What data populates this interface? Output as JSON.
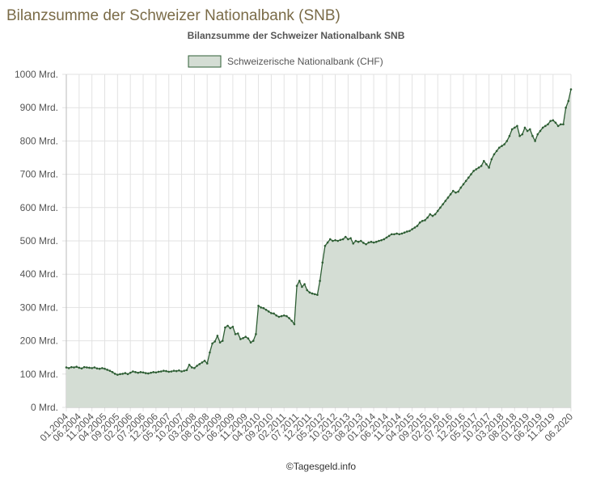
{
  "page_title": "Bilanzsumme der Schweizer Nationalbank (SNB)",
  "credit": "©Tagesgeld.info",
  "chart_data": {
    "type": "line",
    "title": "Bilanzsumme der Schweizer Nationalbank SNB",
    "categories": [
      "01.2004",
      null,
      null,
      null,
      null,
      "06.2004",
      null,
      null,
      null,
      null,
      "11.2004",
      null,
      null,
      null,
      null,
      "04.2005",
      null,
      null,
      null,
      null,
      "09.2005",
      null,
      null,
      null,
      null,
      "02.2006",
      null,
      null,
      null,
      null,
      "07.2006",
      null,
      null,
      null,
      null,
      "12.2006",
      null,
      null,
      null,
      null,
      "05.2007",
      null,
      null,
      null,
      null,
      "10.2007",
      null,
      null,
      null,
      null,
      "03.2008",
      null,
      null,
      null,
      null,
      "08.2008",
      null,
      null,
      null,
      null,
      "01.2009",
      null,
      null,
      null,
      null,
      "06.2009",
      null,
      null,
      null,
      null,
      "11.2009",
      null,
      null,
      null,
      null,
      "04.2010",
      null,
      null,
      null,
      null,
      "09.2010",
      null,
      null,
      null,
      null,
      "02.2011",
      null,
      null,
      null,
      null,
      "07.2011",
      null,
      null,
      null,
      null,
      "12.2011",
      null,
      null,
      null,
      null,
      "05.2012",
      null,
      null,
      null,
      null,
      "10.2012",
      null,
      null,
      null,
      null,
      "03.2013",
      null,
      null,
      null,
      null,
      "08.2013",
      null,
      null,
      null,
      null,
      "01.2014",
      null,
      null,
      null,
      null,
      "06.2014",
      null,
      null,
      null,
      null,
      "11.2014",
      null,
      null,
      null,
      null,
      "04.2015",
      null,
      null,
      null,
      null,
      "09.2015",
      null,
      null,
      null,
      null,
      "02.2016",
      null,
      null,
      null,
      null,
      "07.2016",
      null,
      null,
      null,
      null,
      "12.2016",
      null,
      null,
      null,
      null,
      "05.2017",
      null,
      null,
      null,
      null,
      "10.2017",
      null,
      null,
      null,
      null,
      "03.2018",
      null,
      null,
      null,
      null,
      "08.2018",
      null,
      null,
      null,
      null,
      "01.2019",
      null,
      null,
      null,
      null,
      "06.2019",
      null,
      null,
      null,
      null,
      "11.2019",
      null,
      null,
      null,
      null,
      null,
      null,
      "06.2020"
    ],
    "series": [
      {
        "name": "Schweizerische Nationalbank (CHF)",
        "color": "#2e5e34",
        "fill": "#d4ddd4",
        "values": [
          120,
          118,
          121,
          120,
          122,
          119,
          117,
          121,
          120,
          119,
          118,
          120,
          117,
          116,
          118,
          116,
          113,
          110,
          106,
          101,
          98,
          100,
          101,
          103,
          100,
          104,
          108,
          106,
          104,
          106,
          105,
          103,
          102,
          104,
          106,
          105,
          107,
          108,
          110,
          109,
          107,
          108,
          110,
          109,
          111,
          108,
          110,
          112,
          128,
          120,
          118,
          125,
          130,
          135,
          140,
          132,
          165,
          192,
          198,
          215,
          195,
          200,
          240,
          245,
          238,
          242,
          220,
          222,
          205,
          208,
          212,
          207,
          195,
          200,
          220,
          305,
          300,
          298,
          293,
          288,
          283,
          282,
          276,
          272,
          274,
          276,
          274,
          268,
          260,
          250,
          365,
          380,
          362,
          370,
          352,
          345,
          342,
          340,
          338,
          380,
          435,
          485,
          495,
          505,
          500,
          502,
          500,
          503,
          505,
          512,
          505,
          508,
          492,
          500,
          497,
          500,
          494,
          490,
          495,
          497,
          495,
          497,
          500,
          502,
          505,
          510,
          515,
          520,
          520,
          522,
          520,
          522,
          525,
          528,
          530,
          535,
          540,
          545,
          555,
          560,
          562,
          570,
          580,
          575,
          580,
          590,
          600,
          610,
          620,
          630,
          640,
          650,
          645,
          648,
          660,
          670,
          680,
          690,
          700,
          710,
          715,
          720,
          725,
          740,
          730,
          720,
          745,
          760,
          770,
          780,
          785,
          790,
          800,
          815,
          835,
          840,
          845,
          815,
          820,
          840,
          830,
          835,
          815,
          800,
          820,
          830,
          840,
          845,
          850,
          860,
          862,
          855,
          845,
          850,
          850,
          900,
          920,
          955
        ]
      }
    ],
    "ylim": [
      0,
      1000
    ],
    "yticks": [
      {
        "value": 0,
        "label": "0 Mrd."
      },
      {
        "value": 100,
        "label": "100 Mrd."
      },
      {
        "value": 200,
        "label": "200 Mrd."
      },
      {
        "value": 300,
        "label": "300 Mrd."
      },
      {
        "value": 400,
        "label": "400 Mrd."
      },
      {
        "value": 500,
        "label": "500 Mrd."
      },
      {
        "value": 600,
        "label": "600 Mrd."
      },
      {
        "value": 700,
        "label": "700 Mrd."
      },
      {
        "value": 800,
        "label": "800 Mrd."
      },
      {
        "value": 900,
        "label": "900 Mrd."
      },
      {
        "value": 1000,
        "label": "1000 Mrd."
      }
    ],
    "grid": true,
    "legend": "top"
  }
}
